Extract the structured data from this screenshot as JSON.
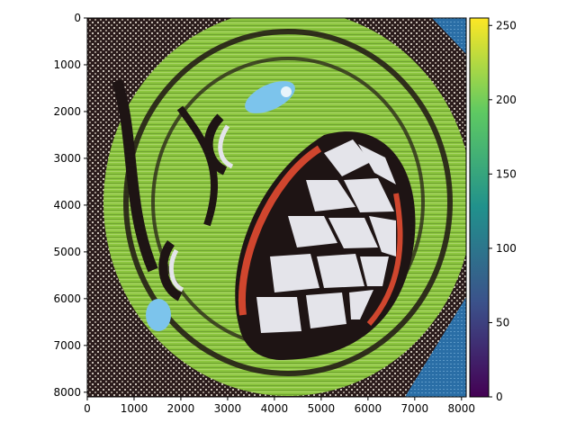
{
  "chart_data": {
    "type": "heatmap",
    "title": "",
    "xlabel": "",
    "ylabel": "",
    "xlim": [
      0,
      8100
    ],
    "ylim": [
      8100,
      0
    ],
    "x_ticks": [
      0,
      1000,
      2000,
      3000,
      4000,
      5000,
      6000,
      7000,
      8000
    ],
    "y_ticks": [
      0,
      1000,
      2000,
      3000,
      4000,
      5000,
      6000,
      7000,
      8000
    ],
    "grid": false,
    "colorbar": {
      "colormap": "viridis",
      "range": [
        0,
        255
      ],
      "ticks": [
        0,
        50,
        100,
        150,
        200,
        250
      ],
      "stops": [
        "#440154",
        "#3b528b",
        "#21918c",
        "#5ec962",
        "#fde725"
      ]
    },
    "image": {
      "description_colors": {
        "background_texture": "#2a1a1a",
        "face_green": "#8cc63f",
        "face_dark_green": "#5e8f2a",
        "outline": "#1a1010",
        "teeth": "#e4e4ea",
        "lip_red": "#d0462e",
        "eye_blue": "#7cc4ec",
        "corner_blue": "#2a6ea6"
      }
    }
  }
}
